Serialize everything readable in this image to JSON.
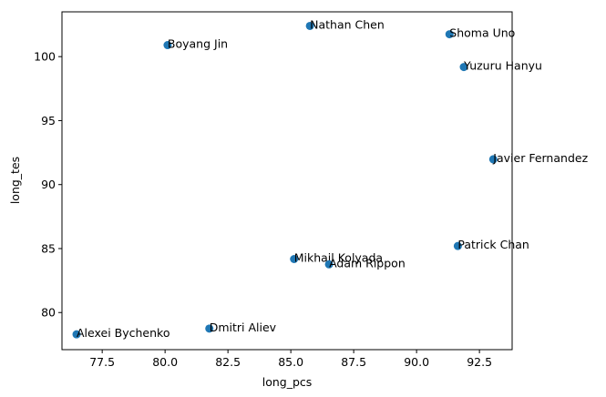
{
  "chart_data": {
    "type": "scatter",
    "xlabel": "long_pcs",
    "ylabel": "long_tes",
    "xlim": [
      75.9,
      93.8
    ],
    "ylim": [
      77.1,
      103.5
    ],
    "xticks": [
      "77.5",
      "80.0",
      "82.5",
      "85.0",
      "87.5",
      "90.0",
      "92.5"
    ],
    "yticks": [
      "80",
      "85",
      "90",
      "95",
      "100"
    ],
    "grid": false,
    "marker_color": "#1f77b4",
    "points": [
      {
        "label": "Nathan Chen",
        "x": 85.76,
        "y": 102.4
      },
      {
        "label": "Shoma Uno",
        "x": 91.31,
        "y": 101.75
      },
      {
        "label": "Boyang Jin",
        "x": 80.1,
        "y": 100.9
      },
      {
        "label": "Yuzuru Hanyu",
        "x": 91.88,
        "y": 99.19
      },
      {
        "label": "Javier Fernandez",
        "x": 93.05,
        "y": 91.98
      },
      {
        "label": "Patrick Chan",
        "x": 91.64,
        "y": 85.2
      },
      {
        "label": "Mikhail Kolyada",
        "x": 85.13,
        "y": 84.18
      },
      {
        "label": "Adam Rippon",
        "x": 86.52,
        "y": 83.77
      },
      {
        "label": "Dmitri Aliev",
        "x": 81.76,
        "y": 78.75
      },
      {
        "label": "Alexei Bychenko",
        "x": 76.48,
        "y": 78.3
      }
    ]
  }
}
